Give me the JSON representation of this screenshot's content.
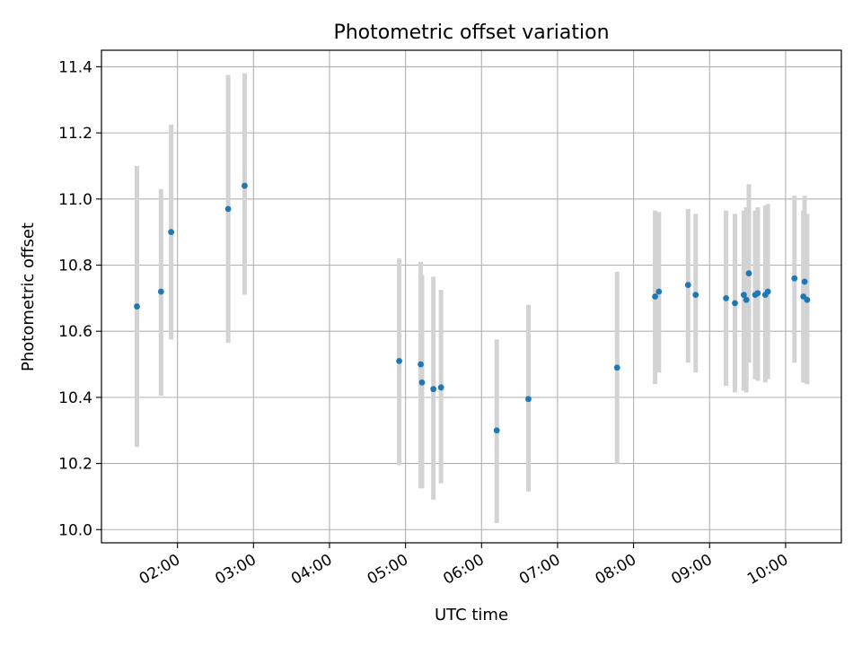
{
  "chart_data": {
    "type": "scatter",
    "title": "Photometric offset variation",
    "xlabel": "UTC time",
    "ylabel": "Photometric offset",
    "xlim": [
      "01:00",
      "10:44"
    ],
    "ylim": [
      9.96,
      11.45
    ],
    "x_ticks": [
      "02:00",
      "03:00",
      "04:00",
      "05:00",
      "06:00",
      "07:00",
      "08:00",
      "09:00",
      "10:00"
    ],
    "y_ticks": [
      "10.0",
      "10.2",
      "10.4",
      "10.6",
      "10.8",
      "11.0",
      "11.2",
      "11.4"
    ],
    "grid": true,
    "colors": {
      "point": "#1f77b4",
      "errorbar": "#d3d3d3",
      "grid": "#b0b0b0"
    },
    "points": [
      {
        "x": "01:28",
        "y": 10.675,
        "ylow": 10.25,
        "yhigh": 11.1
      },
      {
        "x": "01:47",
        "y": 10.72,
        "ylow": 10.405,
        "yhigh": 11.03
      },
      {
        "x": "01:55",
        "y": 10.9,
        "ylow": 10.575,
        "yhigh": 11.225
      },
      {
        "x": "02:40",
        "y": 10.97,
        "ylow": 10.565,
        "yhigh": 11.375
      },
      {
        "x": "02:53",
        "y": 11.04,
        "ylow": 10.71,
        "yhigh": 11.38
      },
      {
        "x": "04:55",
        "y": 10.51,
        "ylow": 10.195,
        "yhigh": 10.82
      },
      {
        "x": "05:12",
        "y": 10.5,
        "ylow": 10.125,
        "yhigh": 10.81
      },
      {
        "x": "05:13",
        "y": 10.445,
        "ylow": 10.125,
        "yhigh": 10.77
      },
      {
        "x": "05:22",
        "y": 10.425,
        "ylow": 10.09,
        "yhigh": 10.765
      },
      {
        "x": "05:28",
        "y": 10.43,
        "ylow": 10.14,
        "yhigh": 10.725
      },
      {
        "x": "06:12",
        "y": 10.3,
        "ylow": 10.02,
        "yhigh": 10.575
      },
      {
        "x": "06:37",
        "y": 10.395,
        "ylow": 10.115,
        "yhigh": 10.68
      },
      {
        "x": "07:47",
        "y": 10.49,
        "ylow": 10.2,
        "yhigh": 10.78
      },
      {
        "x": "08:17",
        "y": 10.705,
        "ylow": 10.44,
        "yhigh": 10.965
      },
      {
        "x": "08:20",
        "y": 10.72,
        "ylow": 10.475,
        "yhigh": 10.96
      },
      {
        "x": "08:43",
        "y": 10.74,
        "ylow": 10.505,
        "yhigh": 10.97
      },
      {
        "x": "08:49",
        "y": 10.71,
        "ylow": 10.475,
        "yhigh": 10.955
      },
      {
        "x": "09:13",
        "y": 10.7,
        "ylow": 10.435,
        "yhigh": 10.965
      },
      {
        "x": "09:20",
        "y": 10.685,
        "ylow": 10.415,
        "yhigh": 10.955
      },
      {
        "x": "09:27",
        "y": 10.71,
        "ylow": 10.42,
        "yhigh": 10.965
      },
      {
        "x": "09:29",
        "y": 10.695,
        "ylow": 10.415,
        "yhigh": 10.975
      },
      {
        "x": "09:31",
        "y": 10.775,
        "ylow": 10.505,
        "yhigh": 11.045
      },
      {
        "x": "09:36",
        "y": 10.71,
        "ylow": 10.455,
        "yhigh": 10.965
      },
      {
        "x": "09:38",
        "y": 10.715,
        "ylow": 10.45,
        "yhigh": 10.975
      },
      {
        "x": "09:44",
        "y": 10.71,
        "ylow": 10.445,
        "yhigh": 10.98
      },
      {
        "x": "09:46",
        "y": 10.72,
        "ylow": 10.455,
        "yhigh": 10.985
      },
      {
        "x": "10:07",
        "y": 10.76,
        "ylow": 10.505,
        "yhigh": 11.01
      },
      {
        "x": "10:14",
        "y": 10.705,
        "ylow": 10.445,
        "yhigh": 10.965
      },
      {
        "x": "10:15",
        "y": 10.75,
        "ylow": 10.445,
        "yhigh": 11.01
      },
      {
        "x": "10:17",
        "y": 10.695,
        "ylow": 10.44,
        "yhigh": 10.955
      }
    ]
  }
}
